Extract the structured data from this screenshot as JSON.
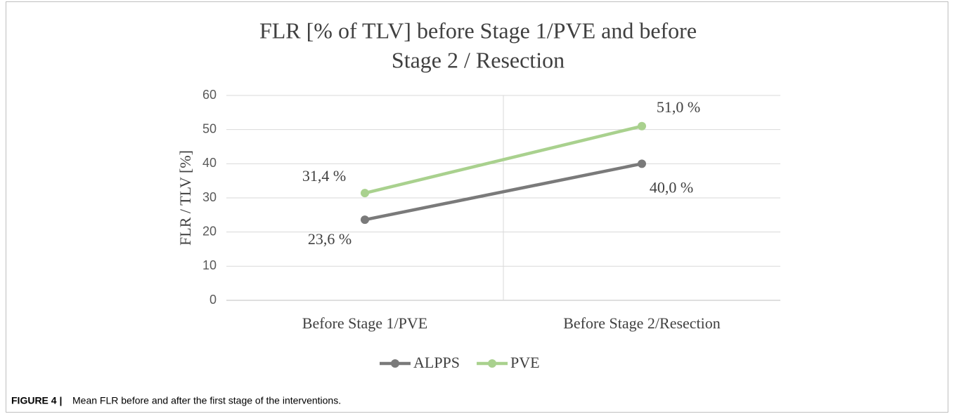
{
  "chart_data": {
    "type": "line",
    "title": [
      "FLR [% of TLV] before Stage 1/PVE and before",
      "Stage 2 / Resection"
    ],
    "y_label": "FLR / TLV [%]",
    "categories": [
      "Before Stage 1/PVE",
      "Before Stage 2/Resection"
    ],
    "series": [
      {
        "name": "ALPPS",
        "color": "#7a7a7a",
        "values": [
          23.6,
          40.0
        ],
        "value_labels": [
          "23,6 %",
          "40,0 %"
        ]
      },
      {
        "name": "PVE",
        "color": "#a9d18e",
        "values": [
          31.4,
          51.0
        ],
        "value_labels": [
          "31,4 %",
          "51,0 %"
        ]
      }
    ],
    "ylim": [
      0,
      60
    ],
    "yticks": [
      0,
      10,
      20,
      30,
      40,
      50,
      60
    ],
    "grid": true,
    "legend": "bottom"
  },
  "figure_label": "FIGURE 4 |",
  "caption": "Mean FLR before and after the first stage of the interventions."
}
